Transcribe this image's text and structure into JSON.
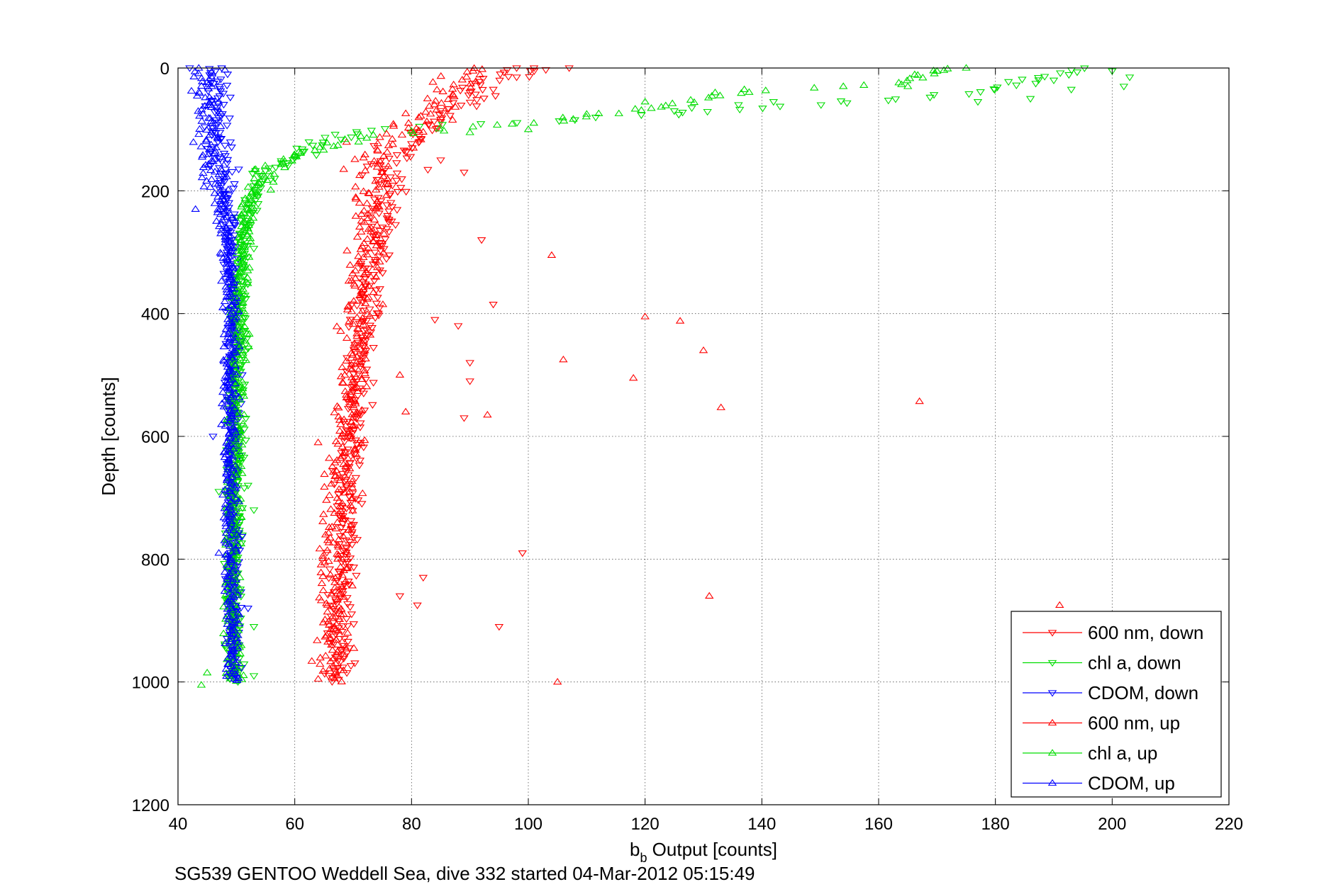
{
  "caption": "SG539 GENTOO Weddell Sea, dive 332 started 04-Mar-2012 05:15:49",
  "chart_data": {
    "type": "scatter",
    "title": "",
    "xlabel_main": "b",
    "xlabel_sub": "b",
    "xlabel_rest": " Output [counts]",
    "ylabel": "Depth [counts]",
    "xlim": [
      40,
      220
    ],
    "ylim": [
      0,
      1200
    ],
    "y_reversed": true,
    "grid": true,
    "x_ticks": [
      40,
      60,
      80,
      100,
      120,
      140,
      160,
      180,
      200,
      220
    ],
    "y_ticks": [
      0,
      200,
      400,
      600,
      800,
      1000,
      1200
    ],
    "legend_position": "bottom-right",
    "series": [
      {
        "name": "600 nm, down",
        "color": "#ff0000",
        "marker": "triangle-down",
        "profile": [
          [
            0,
            97
          ],
          [
            30,
            92
          ],
          [
            60,
            88
          ],
          [
            80,
            84
          ],
          [
            100,
            81
          ],
          [
            120,
            79
          ],
          [
            150,
            77
          ],
          [
            200,
            76
          ],
          [
            250,
            75
          ],
          [
            300,
            74
          ],
          [
            350,
            73
          ],
          [
            400,
            72
          ],
          [
            500,
            71
          ],
          [
            600,
            70
          ],
          [
            700,
            69
          ],
          [
            800,
            68.5
          ],
          [
            900,
            68
          ],
          [
            1000,
            68
          ]
        ],
        "spread": 2.2,
        "outliers": [
          [
            98,
            0
          ],
          [
            101,
            5
          ],
          [
            103,
            3
          ],
          [
            107,
            0
          ],
          [
            90,
            40
          ],
          [
            94,
            35
          ],
          [
            98,
            15
          ],
          [
            85,
            150
          ],
          [
            89,
            170
          ],
          [
            92,
            280
          ],
          [
            94,
            385
          ],
          [
            88,
            420
          ],
          [
            90,
            480
          ],
          [
            90,
            510
          ],
          [
            89,
            570
          ],
          [
            99,
            790
          ],
          [
            95,
            910
          ],
          [
            82,
            830
          ],
          [
            81,
            875
          ],
          [
            78,
            860
          ],
          [
            84,
            410
          ]
        ]
      },
      {
        "name": "chl a, down",
        "color": "#00dd00",
        "marker": "triangle-down",
        "profile": [
          [
            0,
            196
          ],
          [
            40,
            178
          ],
          [
            60,
            148
          ],
          [
            80,
            115
          ],
          [
            100,
            72
          ],
          [
            120,
            65
          ],
          [
            150,
            58
          ],
          [
            180,
            55
          ],
          [
            210,
            53
          ],
          [
            250,
            51.5
          ],
          [
            300,
            51
          ],
          [
            400,
            50.5
          ],
          [
            600,
            50
          ],
          [
            800,
            49.5
          ],
          [
            1000,
            49.5
          ]
        ],
        "spread": 1.3,
        "outliers": [
          [
            190,
            20
          ],
          [
            193,
            35
          ],
          [
            200,
            5
          ],
          [
            203,
            15
          ],
          [
            186,
            50
          ],
          [
            177,
            55
          ],
          [
            142,
            55
          ],
          [
            136,
            60
          ],
          [
            128,
            65
          ],
          [
            125,
            70
          ],
          [
            202,
            30
          ],
          [
            52,
            680
          ],
          [
            53,
            720
          ],
          [
            47,
            690
          ],
          [
            53,
            910
          ],
          [
            53,
            990
          ]
        ]
      },
      {
        "name": "CDOM, down",
        "color": "#0000ff",
        "marker": "triangle-down",
        "profile": [
          [
            0,
            46
          ],
          [
            100,
            47
          ],
          [
            200,
            48.5
          ],
          [
            300,
            49
          ],
          [
            400,
            49.5
          ],
          [
            600,
            49.5
          ],
          [
            800,
            49.5
          ],
          [
            1000,
            49.5
          ]
        ],
        "spread": 1.0,
        "outliers": [
          [
            42,
            0
          ],
          [
            46,
            600
          ],
          [
            51,
            500
          ],
          [
            52,
            880
          ]
        ]
      },
      {
        "name": "600 nm, up",
        "color": "#ff0000",
        "marker": "triangle-up",
        "profile": [
          [
            0,
            90
          ],
          [
            20,
            88
          ],
          [
            40,
            86
          ],
          [
            60,
            84
          ],
          [
            80,
            82
          ],
          [
            100,
            78
          ],
          [
            120,
            76
          ],
          [
            150,
            74
          ],
          [
            200,
            73
          ],
          [
            250,
            72
          ],
          [
            300,
            72
          ],
          [
            400,
            71
          ],
          [
            500,
            70
          ],
          [
            600,
            69
          ],
          [
            700,
            68
          ],
          [
            800,
            67
          ],
          [
            900,
            66.5
          ],
          [
            1000,
            66
          ]
        ],
        "spread": 2.5,
        "outliers": [
          [
            104,
            305
          ],
          [
            120,
            405
          ],
          [
            126,
            412
          ],
          [
            130,
            460
          ],
          [
            133,
            553
          ],
          [
            106,
            475
          ],
          [
            118,
            505
          ],
          [
            167,
            543
          ],
          [
            131,
            860
          ],
          [
            191,
            875
          ],
          [
            105,
            1000
          ],
          [
            93,
            565
          ],
          [
            64,
            610
          ],
          [
            78,
            500
          ],
          [
            79,
            560
          ]
        ]
      },
      {
        "name": "chl a, up",
        "color": "#00dd00",
        "marker": "triangle-up",
        "profile": [
          [
            0,
            172
          ],
          [
            25,
            164
          ],
          [
            40,
            135
          ],
          [
            70,
            118
          ],
          [
            90,
            100
          ],
          [
            100,
            85
          ],
          [
            115,
            70
          ],
          [
            130,
            64
          ],
          [
            150,
            58
          ],
          [
            180,
            55
          ],
          [
            220,
            52
          ],
          [
            300,
            51
          ],
          [
            400,
            50.5
          ],
          [
            600,
            50
          ],
          [
            800,
            49.5
          ],
          [
            1000,
            49.5
          ]
        ],
        "spread": 1.3,
        "outliers": [
          [
            165,
            30
          ],
          [
            170,
            5
          ],
          [
            175,
            0
          ],
          [
            137,
            35
          ],
          [
            132,
            40
          ],
          [
            120,
            55
          ],
          [
            110,
            75
          ],
          [
            100,
            100
          ],
          [
            90,
            105
          ],
          [
            45,
            985
          ],
          [
            44,
            1005
          ]
        ]
      },
      {
        "name": "CDOM, up",
        "color": "#0000ff",
        "marker": "triangle-up",
        "profile": [
          [
            0,
            45
          ],
          [
            50,
            44.5
          ],
          [
            100,
            45
          ],
          [
            150,
            46
          ],
          [
            200,
            47
          ],
          [
            300,
            48.5
          ],
          [
            400,
            49
          ],
          [
            600,
            49
          ],
          [
            800,
            49
          ],
          [
            1000,
            49.5
          ]
        ],
        "spread": 1.2,
        "outliers": [
          [
            43,
            230
          ],
          [
            47,
            790
          ]
        ]
      }
    ]
  }
}
